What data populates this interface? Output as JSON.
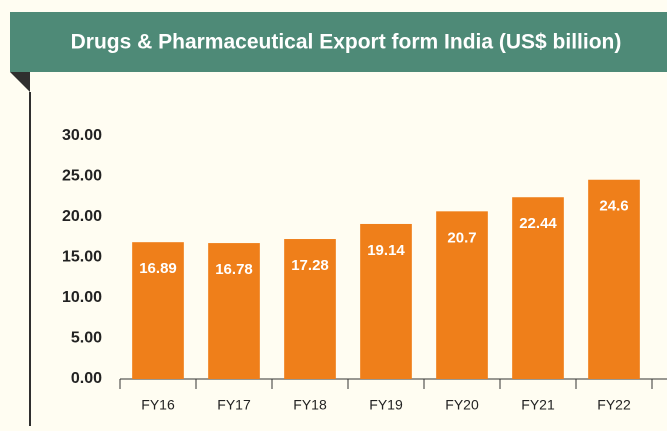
{
  "chart_data": {
    "type": "bar",
    "title": "Drugs & Pharmaceutical Export form India (US$ billion)",
    "categories": [
      "FY16",
      "FY17",
      "FY18",
      "FY19",
      "FY20",
      "FY21",
      "FY22"
    ],
    "values": [
      16.89,
      16.78,
      17.28,
      19.14,
      20.7,
      22.44,
      24.6
    ],
    "color": "#ef7f1a",
    "ylim": [
      0,
      30
    ],
    "yticks": [
      {
        "value": 0,
        "label": "0.00"
      },
      {
        "value": 5,
        "label": "5.00"
      },
      {
        "value": 10,
        "label": "10.00"
      },
      {
        "value": 15,
        "label": "15.00"
      },
      {
        "value": 20,
        "label": "20.00"
      },
      {
        "value": 25,
        "label": "25.00"
      },
      {
        "value": 30,
        "label": "30.00"
      }
    ],
    "grid": false
  }
}
